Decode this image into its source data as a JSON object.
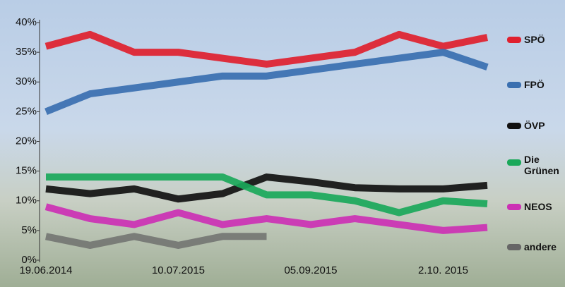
{
  "chart_data": {
    "type": "line",
    "categories": [
      "19.06.2014",
      null,
      null,
      "10.07.2015",
      null,
      null,
      "05.09.2015",
      null,
      null,
      "2.10. 2015",
      null
    ],
    "series": [
      {
        "name": "SPÖ",
        "color": "#e0202e",
        "values": [
          36,
          38,
          35,
          35,
          34,
          33,
          34,
          35,
          38,
          36,
          37.5
        ]
      },
      {
        "name": "FPÖ",
        "color": "#3a6fb0",
        "values": [
          25,
          28,
          29,
          30,
          31,
          31,
          32,
          33,
          34,
          35,
          32.5
        ]
      },
      {
        "name": "ÖVP",
        "color": "#111111",
        "values": [
          12,
          11.2,
          12,
          10.3,
          11.2,
          14,
          13.2,
          12.2,
          12,
          12,
          12.6
        ]
      },
      {
        "name": "Die Grünen",
        "color": "#1aa85a",
        "values": [
          14,
          14,
          14,
          14,
          14,
          11,
          11,
          10,
          8,
          10,
          9.5
        ]
      },
      {
        "name": "NEOS",
        "color": "#cc30b4",
        "values": [
          9,
          7,
          6,
          8,
          6,
          7,
          6,
          7,
          6,
          5,
          5.5
        ]
      },
      {
        "name": "andere",
        "color": "#666666",
        "values": [
          4,
          2.5,
          4,
          2.5,
          4,
          4,
          null,
          null,
          null,
          null,
          null
        ]
      }
    ],
    "ylim": [
      0,
      40
    ],
    "yticks": [
      {
        "value": 0,
        "label": "0%"
      },
      {
        "value": 5,
        "label": "5%"
      },
      {
        "value": 10,
        "label": "10%"
      },
      {
        "value": 15,
        "label": "15%"
      },
      {
        "value": 20,
        "label": "20%"
      },
      {
        "value": 25,
        "label": "25%"
      },
      {
        "value": 30,
        "label": "30%"
      },
      {
        "value": 35,
        "label": "35%"
      },
      {
        "value": 40,
        "label": "40%"
      }
    ]
  }
}
